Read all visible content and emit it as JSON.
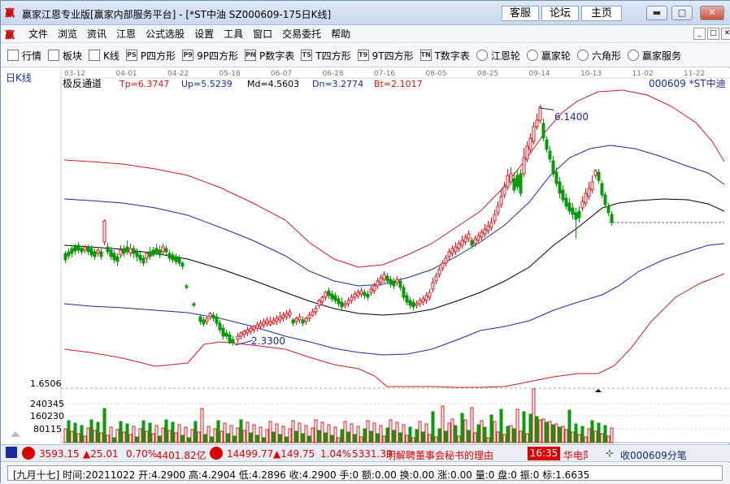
{
  "window": {
    "title": "赢家江恩专业版[赢家内部服务平台] - [*ST中油  SZ000609-175日K线]",
    "links": [
      "客服",
      "论坛",
      "主页"
    ],
    "controls": [
      "minimize",
      "maximize",
      "close"
    ]
  },
  "menu": {
    "items": [
      "文件",
      "浏览",
      "资讯",
      "江恩",
      "公式选股",
      "设置",
      "工具",
      "窗口",
      "交易委托",
      "帮助"
    ]
  },
  "toolbar": {
    "items": [
      {
        "label": "行情",
        "icon": "grid-icon"
      },
      {
        "label": "板块",
        "icon": "blocks-icon"
      },
      {
        "label": "K线",
        "icon": "candlestick-icon"
      },
      {
        "label": "P四方形",
        "icon": "ps-icon",
        "badge": "PS"
      },
      {
        "label": "9P四方形",
        "icon": "p9-icon",
        "badge": "P9"
      },
      {
        "label": "P数字表",
        "icon": "pn-icon",
        "badge": "PN"
      },
      {
        "label": "T四方形",
        "icon": "ts-icon",
        "badge": "TS"
      },
      {
        "label": "9T四方形",
        "icon": "t9-icon",
        "badge": "T9"
      },
      {
        "label": "T数字表",
        "icon": "tn-icon",
        "badge": "TN"
      },
      {
        "label": "江恩轮",
        "icon": "gann-wheel-icon"
      },
      {
        "label": "赢家轮",
        "icon": "winner-wheel-icon"
      },
      {
        "label": "六角形",
        "icon": "hexagon-icon"
      },
      {
        "label": "赢家服务",
        "icon": "dollar-icon"
      }
    ]
  },
  "chart": {
    "period_label": "日K线",
    "indicator_name": "极反通道",
    "params": {
      "Tp": "Tp=6.3747",
      "Up": "Up=5.5239",
      "Md": "Md=4.5603",
      "Dn": "Dn=3.2774",
      "Bt": "Bt=2.1017"
    },
    "symbol_label": "000609 *ST中迪",
    "date_ticks": [
      "03-12",
      "04-01",
      "04-22",
      "05-18",
      "06-07",
      "06-28",
      "07-16",
      "08-05",
      "08-25",
      "09-14",
      "10-13",
      "11-02",
      "11-22"
    ],
    "high_label": "6.1400",
    "low_label": "2.3300",
    "price_axis_max_label": "1.6506",
    "volume_ticks": [
      "240345",
      "160230",
      "80115"
    ],
    "colors": {
      "up": "#e8141c",
      "down": "#0a9a0a",
      "upper_band": "#d41a1a",
      "mid1": "#1b2ba5",
      "mid": "#000000"
    }
  },
  "chart_data": {
    "type": "candlestick",
    "series_names": [
      "Tp",
      "Up",
      "Md",
      "Dn",
      "Bt"
    ],
    "last_values": {
      "Tp": 6.3747,
      "Up": 5.5239,
      "Md": 4.5603,
      "Dn": 3.2774,
      "Bt": 2.1017
    },
    "high": 6.14,
    "low": 2.33,
    "last_bar": {
      "date": "20211022",
      "open": 4.29,
      "high": 4.2904,
      "low": 4.2896,
      "close": 4.29
    },
    "volume_axis": [
      80115,
      160230,
      240345
    ]
  },
  "status": {
    "sh_index": "3593.15",
    "sh_change": "▲25.01",
    "sh_pct": "0.70%",
    "sh_amount": "4401.82亿",
    "sz_index": "14499.77",
    "sz_change": "▲149.75",
    "sz_pct": "1.04%",
    "sz_amount": "5331.39",
    "news": "明解聘董事会秘书的理由",
    "news_time": "16:35",
    "news_source": "华电阝",
    "stock_label": "收000609分笔",
    "bottom_line": "[九月十七] 时间:20211022 开:4.2900 高:4.2904 低:4.2896 收:4.2900 手:0 额:0.00 换:0.00 涨:0.00 量:0 盘:0 振:0 标:1.6635"
  }
}
